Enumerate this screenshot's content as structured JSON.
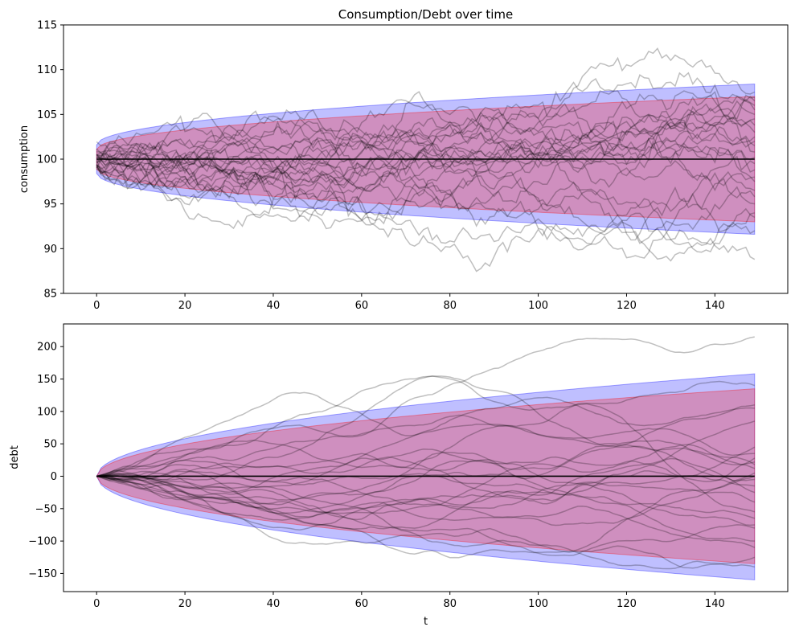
{
  "chart_data": [
    {
      "type": "line",
      "title": "Consumption/Debt over time",
      "xlabel": "",
      "ylabel": "consumption",
      "xlim": [
        -7.5,
        156.5
      ],
      "ylim": [
        85,
        115
      ],
      "xticks": [
        0,
        20,
        40,
        60,
        80,
        100,
        120,
        140
      ],
      "yticks": [
        85,
        90,
        95,
        100,
        105,
        110,
        115
      ],
      "mean": 100,
      "band_outer": {
        "color": "#0000ff",
        "opacity": 0.25,
        "at_t0": [
          98.4,
          101.6
        ],
        "at_t149": [
          91.6,
          108.4
        ]
      },
      "band_inner": {
        "color": "#ff0000",
        "opacity": 0.25,
        "at_t0": [
          98.9,
          101.1
        ],
        "at_t149": [
          93.0,
          107.0
        ]
      },
      "simulated_paths": {
        "count": 25,
        "color": "#000000",
        "opacity": 0.25,
        "endpoints": [
          88.8,
          92.0,
          93.5,
          94.0,
          95.0,
          95.8,
          96.5,
          97.5,
          98.0,
          98.8,
          99.5,
          100.2,
          100.8,
          101.5,
          102.0,
          102.5,
          103.0,
          103.8,
          104.5,
          105.0,
          105.5,
          106.0,
          106.5,
          106.9,
          107.5
        ]
      }
    },
    {
      "type": "line",
      "title": "",
      "xlabel": "t",
      "ylabel": "debt",
      "xlim": [
        -7.5,
        156.5
      ],
      "ylim": [
        -178,
        235
      ],
      "xticks": [
        0,
        20,
        40,
        60,
        80,
        100,
        120,
        140
      ],
      "yticks": [
        -150,
        -100,
        -50,
        0,
        50,
        100,
        150,
        200
      ],
      "ytick_labels": [
        "−150",
        "−100",
        "−50",
        "0",
        "50",
        "100",
        "150",
        "200"
      ],
      "mean": 0,
      "band_outer": {
        "color": "#0000ff",
        "opacity": 0.25,
        "at_t149": [
          -160,
          158
        ]
      },
      "band_inner": {
        "color": "#ff0000",
        "opacity": 0.25,
        "at_t149": [
          -135,
          135
        ]
      },
      "simulated_paths": {
        "count": 25,
        "color": "#000000",
        "opacity": 0.25,
        "endpoints": [
          215,
          140,
          110,
          105,
          85,
          45,
          35,
          28,
          22,
          18,
          12,
          5,
          0,
          -5,
          -15,
          -25,
          -40,
          -55,
          -65,
          -75,
          -80,
          -100,
          -110,
          -125,
          -140
        ]
      }
    }
  ]
}
